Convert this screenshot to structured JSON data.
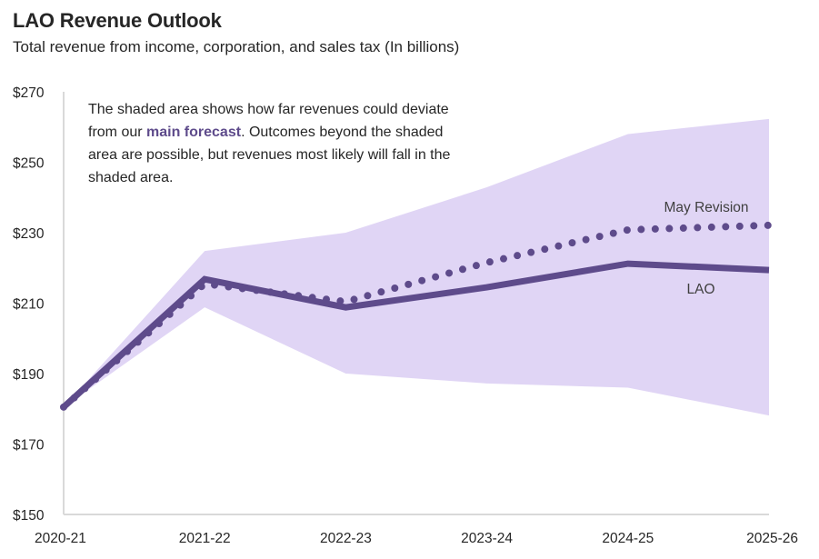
{
  "header": {
    "title": "LAO Revenue Outlook",
    "subtitle": "Total revenue from income, corporation, and sales tax (In billions)"
  },
  "note": {
    "before": "The shaded area shows how far revenues could deviate from our ",
    "highlight": "main forecast",
    "after": ". Outcomes beyond the shaded area are possible, but revenues most likely will fall in the shaded area."
  },
  "colors": {
    "band": "#e0d5f5",
    "line": "#5e4b8b",
    "axis": "#d9d9d9",
    "text": "#262626"
  },
  "chart_data": {
    "type": "line",
    "title": "LAO Revenue Outlook",
    "subtitle": "Total revenue from income, corporation, and sales tax (In billions)",
    "xlabel": "",
    "ylabel": "",
    "categories": [
      "2020-21",
      "2021-22",
      "2022-23",
      "2023-24",
      "2024-25",
      "2025-26"
    ],
    "ylim": [
      150,
      270
    ],
    "yticks": [
      150,
      170,
      190,
      210,
      230,
      250,
      270
    ],
    "ytick_labels": [
      "$150",
      "$170",
      "$190",
      "$210",
      "$230",
      "$250",
      "$270"
    ],
    "grid": false,
    "legend": "none (direct series labels at right)",
    "band": {
      "name": "Range of likely outcomes",
      "upper": [
        180.5,
        224.8,
        230.0,
        242.9,
        258.0,
        262.3
      ],
      "lower": [
        180.5,
        208.8,
        190.0,
        187.2,
        186.0,
        178.1
      ]
    },
    "series": [
      {
        "name": "LAO",
        "style": "solid",
        "values": [
          180.5,
          216.8,
          208.8,
          214.5,
          221.2,
          219.4
        ]
      },
      {
        "name": "May Revision",
        "style": "dotted",
        "values": [
          180.5,
          215.5,
          210.4,
          221.5,
          230.8,
          232.1
        ]
      }
    ],
    "annotations": [
      {
        "text": "May Revision",
        "near_series": "May Revision",
        "position": "above line, right"
      },
      {
        "text": "LAO",
        "near_series": "LAO",
        "position": "below line, right"
      }
    ]
  }
}
